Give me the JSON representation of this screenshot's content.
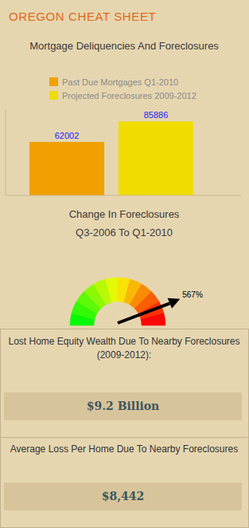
{
  "header": {
    "title": "OREGON CHEAT SHEET"
  },
  "chart_data": [
    {
      "type": "bar",
      "title": "Mortgage Deliquencies And Foreclosures",
      "categories": [
        "Past Due Mortgages Q1-2010",
        "Projected Foreclosures 2009-2012"
      ],
      "values": [
        62002,
        85886
      ],
      "colors": [
        "#f0a000",
        "#f0dc00"
      ],
      "ylim": [
        0,
        100000
      ],
      "legend": "top",
      "data_labels": true,
      "tick_labels": false
    },
    {
      "type": "gauge",
      "title": "Change In Foreclosures",
      "subtitle": "Q3-2006 To Q1-2010",
      "values": [
        567
      ],
      "value_labels": [
        "567%"
      ],
      "ylim": [
        0,
        650
      ],
      "data_labels": true
    }
  ],
  "stats": [
    {
      "label": "Lost Home Equity Wealth Due To Nearby Foreclosures (2009-2012):",
      "value": "$9.2 Billion"
    },
    {
      "label": "Average Loss Per Home Due To Nearby Foreclosures",
      "value": "$8,442"
    }
  ]
}
